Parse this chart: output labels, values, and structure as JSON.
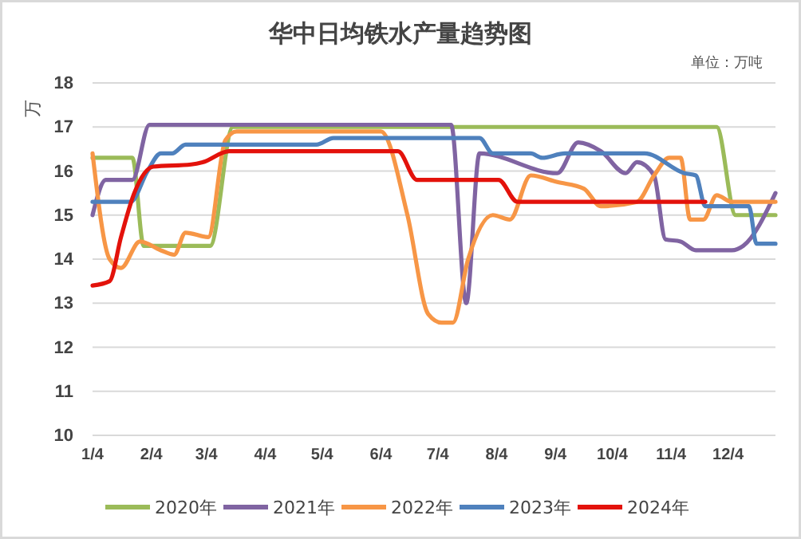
{
  "chart_data": {
    "type": "line",
    "title": "华中日均铁水产量趋势图",
    "annotations": [
      "单位：万吨"
    ],
    "ylabel": "万",
    "xlim": [
      "--01-04",
      "--12-29"
    ],
    "xticks": [
      {
        "value": "--01-04",
        "label": "1/4"
      },
      {
        "value": "--02-04",
        "label": "2/4"
      },
      {
        "value": "--03-04",
        "label": "3/4"
      },
      {
        "value": "--04-04",
        "label": "4/4"
      },
      {
        "value": "--05-04",
        "label": "5/4"
      },
      {
        "value": "--06-04",
        "label": "6/4"
      },
      {
        "value": "--07-04",
        "label": "7/4"
      },
      {
        "value": "--08-04",
        "label": "8/4"
      },
      {
        "value": "--09-04",
        "label": "9/4"
      },
      {
        "value": "--10-04",
        "label": "10/4"
      },
      {
        "value": "--11-04",
        "label": "11/4"
      },
      {
        "value": "--12-04",
        "label": "12/4"
      }
    ],
    "ylim": [
      10,
      18
    ],
    "yticks": [
      10,
      11,
      12,
      13,
      14,
      15,
      16,
      17,
      18
    ],
    "grid": "y",
    "legend": "bottom",
    "marker": "none",
    "line_style": "solid",
    "series": [
      {
        "name": "2020年",
        "color": "#9bbb59",
        "x": [
          "--01-04",
          "--01-06",
          "--01-25",
          "--01-31",
          "--03-06",
          "--03-18",
          "--11-28",
          "--12-08",
          "--12-29"
        ],
        "values": [
          16.3,
          16.3,
          16.3,
          14.3,
          14.3,
          17.0,
          17.0,
          15.0,
          15.0
        ]
      },
      {
        "name": "2021年",
        "color": "#8064a2",
        "x": [
          "--01-04",
          "--01-11",
          "--01-25",
          "--02-03",
          "--07-11",
          "--07-19",
          "--07-26",
          "--09-05",
          "--09-16",
          "--09-28",
          "--10-11",
          "--10-17",
          "--10-26",
          "--11-01",
          "--11-09",
          "--11-17",
          "--12-06",
          "--12-12",
          "--12-29"
        ],
        "values": [
          15.0,
          15.8,
          15.8,
          17.05,
          17.05,
          13.0,
          16.4,
          15.95,
          16.65,
          16.45,
          15.95,
          16.2,
          15.9,
          14.45,
          14.4,
          14.2,
          14.2,
          14.3,
          15.5
        ]
      },
      {
        "name": "2022年",
        "color": "#f79646",
        "x": [
          "--01-04",
          "--01-13",
          "--01-19",
          "--01-29",
          "--02-09",
          "--02-16",
          "--02-22",
          "--03-05",
          "--03-14",
          "--03-20",
          "--06-04",
          "--06-18",
          "--06-29",
          "--07-06",
          "--07-12",
          "--07-20",
          "--08-02",
          "--08-11",
          "--08-22",
          "--09-05",
          "--09-19",
          "--09-28",
          "--10-17",
          "--10-26",
          "--11-03",
          "--11-09",
          "--11-14",
          "--11-21",
          "--11-28",
          "--12-06",
          "--12-29"
        ],
        "values": [
          16.4,
          14.0,
          13.8,
          14.4,
          14.2,
          14.1,
          14.6,
          14.5,
          16.7,
          16.9,
          16.9,
          15.0,
          12.75,
          12.56,
          12.56,
          14.0,
          15.0,
          14.9,
          15.9,
          15.75,
          15.6,
          15.2,
          15.3,
          15.9,
          16.3,
          16.3,
          14.9,
          14.9,
          15.45,
          15.3,
          15.3
        ]
      },
      {
        "name": "2023年",
        "color": "#4f81bd",
        "x": [
          "--01-04",
          "--01-24",
          "--02-02",
          "--02-09",
          "--02-15",
          "--02-22",
          "--05-01",
          "--05-10",
          "--07-26",
          "--08-02",
          "--08-22",
          "--08-28",
          "--09-09",
          "--10-21",
          "--11-11",
          "--11-17",
          "--11-22",
          "--12-15",
          "--12-19",
          "--12-29"
        ],
        "values": [
          15.3,
          15.3,
          16.0,
          16.4,
          16.4,
          16.6,
          16.6,
          16.75,
          16.75,
          16.4,
          16.4,
          16.3,
          16.4,
          16.4,
          15.95,
          15.9,
          15.2,
          15.2,
          14.35,
          14.35
        ]
      },
      {
        "name": "2024年",
        "color": "#e3120b",
        "x": [
          "--01-04",
          "--01-13",
          "--01-19",
          "--01-26",
          "--02-05",
          "--02-25",
          "--03-02",
          "--03-16",
          "--06-13",
          "--06-23",
          "--08-05",
          "--08-15",
          "--11-22"
        ],
        "values": [
          13.4,
          13.5,
          14.5,
          15.5,
          16.1,
          16.15,
          16.2,
          16.45,
          16.45,
          15.8,
          15.8,
          15.3,
          15.3
        ]
      }
    ]
  }
}
